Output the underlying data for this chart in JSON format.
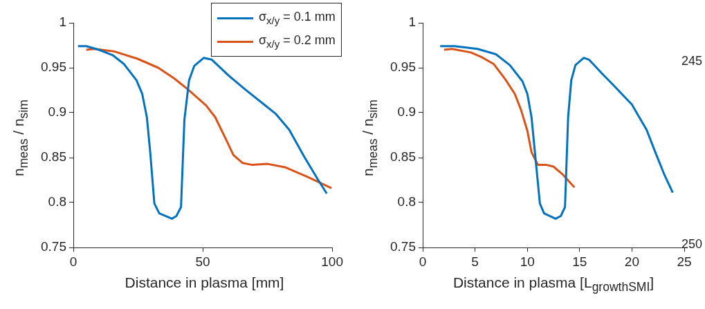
{
  "chart_data": [
    {
      "type": "line",
      "xlabel": "Distance in plasma [mm]",
      "ylabel": "n$_{meas}$ / n$_{sim}$",
      "xlim": [
        0,
        100
      ],
      "xticks": [
        0,
        50,
        100
      ],
      "ylim": [
        0.75,
        1
      ],
      "yticks": [
        0.75,
        0.8,
        0.85,
        0.9,
        0.95,
        1
      ],
      "legend": "top right",
      "series": [
        {
          "name": "σ$_{x/y}$ = 0.1 mm",
          "color": "#0072bd",
          "x": [
            1.8,
            5,
            9.9,
            15.2,
            19.6,
            24.4,
            26.6,
            28.4,
            29.7,
            31.3,
            33.2,
            38.1,
            39.8,
            41.6,
            42.9,
            44.7,
            46.7,
            50.4,
            53.5,
            60.1,
            66.3,
            73.3,
            78.1,
            83.4,
            89.2,
            94.4,
            97.9
          ],
          "values": [
            0.974,
            0.974,
            0.97,
            0.964,
            0.954,
            0.936,
            0.921,
            0.895,
            0.856,
            0.799,
            0.788,
            0.782,
            0.785,
            0.795,
            0.892,
            0.936,
            0.952,
            0.961,
            0.959,
            0.941,
            0.926,
            0.91,
            0.899,
            0.881,
            0.851,
            0.826,
            0.81
          ]
        },
        {
          "name": "σ$_{x/y}$ = 0.2 mm",
          "color": "#d95319",
          "x": [
            5,
            8.1,
            16,
            24.8,
            32.8,
            39,
            44.2,
            51.3,
            54.8,
            59.2,
            61.8,
            65.4,
            68.9,
            75.1,
            82.1,
            90.9,
            99.7
          ],
          "values": [
            0.97,
            0.971,
            0.968,
            0.96,
            0.95,
            0.938,
            0.926,
            0.908,
            0.895,
            0.869,
            0.853,
            0.844,
            0.842,
            0.843,
            0.839,
            0.828,
            0.816
          ]
        }
      ]
    },
    {
      "type": "line",
      "xlabel": "Distance in plasma [L$_{growthSMI}$]",
      "ylabel": "n$_{meas}$ / n$_{sim}$",
      "xlim": [
        0,
        25
      ],
      "xticks": [
        0,
        5,
        10,
        15,
        20,
        25
      ],
      "ylim": [
        0.75,
        1
      ],
      "yticks": [
        0.75,
        0.8,
        0.85,
        0.9,
        0.95,
        1
      ],
      "annotations": [
        "245",
        "250"
      ],
      "series": [
        {
          "color": "#0072bd",
          "x": [
            1.67,
            3.04,
            5.24,
            7.0,
            8.32,
            9.53,
            10.0,
            10.4,
            10.7,
            11.2,
            11.6,
            12.7,
            13.2,
            13.6,
            13.9,
            14.2,
            14.6,
            15.4,
            15.9,
            17.1,
            18.2,
            20.0,
            20.6,
            21.4,
            22.2,
            23.1,
            23.9
          ],
          "values": [
            0.974,
            0.974,
            0.971,
            0.965,
            0.953,
            0.935,
            0.921,
            0.895,
            0.859,
            0.799,
            0.788,
            0.782,
            0.785,
            0.795,
            0.895,
            0.936,
            0.953,
            0.961,
            0.959,
            0.944,
            0.931,
            0.909,
            0.897,
            0.881,
            0.857,
            0.831,
            0.811
          ]
        },
        {
          "color": "#d95319",
          "x": [
            2.05,
            2.8,
            4.6,
            5.6,
            6.8,
            7.9,
            8.8,
            9.4,
            10.0,
            10.4,
            11.0,
            11.8,
            12.5,
            13.4,
            14.5
          ],
          "values": [
            0.97,
            0.971,
            0.967,
            0.962,
            0.954,
            0.937,
            0.921,
            0.903,
            0.88,
            0.856,
            0.842,
            0.842,
            0.84,
            0.831,
            0.817
          ]
        }
      ]
    }
  ]
}
